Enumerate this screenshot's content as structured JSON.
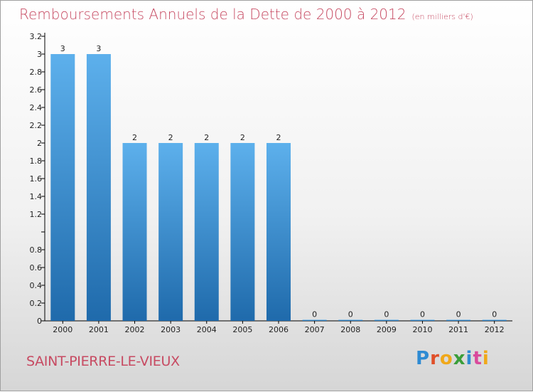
{
  "header": {
    "title": "Remboursements Annuels de la Dette de 2000 à 2012",
    "subtitle": "(en milliers d'€)"
  },
  "commune": "SAINT-PIERRE-LE-VIEUX",
  "logo": {
    "text": "Proxiti",
    "letters": [
      "P",
      "r",
      "o",
      "x",
      "i",
      "t",
      "i"
    ]
  },
  "chart_data": {
    "type": "bar",
    "categories": [
      "2000",
      "2001",
      "2002",
      "2003",
      "2004",
      "2005",
      "2006",
      "2007",
      "2008",
      "2009",
      "2010",
      "2011",
      "2012"
    ],
    "values": [
      3,
      3,
      2,
      2,
      2,
      2,
      2,
      0,
      0,
      0,
      0,
      0,
      0
    ],
    "data_labels": [
      "3",
      "3",
      "2",
      "2",
      "2",
      "2",
      "2",
      "0",
      "0",
      "0",
      "0",
      "0",
      "0"
    ],
    "yticks": [
      0,
      0.2,
      0.4,
      0.6,
      0.8,
      1,
      1.2,
      1.4,
      1.6,
      1.8,
      2,
      2.2,
      2.4,
      2.6,
      2.8,
      3,
      3.2
    ],
    "ytick_labels": [
      "0",
      "0.2",
      "0.4",
      "0.6",
      "0.8",
      "",
      "1.2",
      "1.4",
      "1.6",
      "1.8",
      "2",
      "2.2",
      "2.4",
      "2.6",
      "2.8",
      "3",
      "3.2"
    ],
    "ylim": [
      0,
      3.2
    ],
    "bar_color": "#4a9fe0",
    "bar_color_dark": "#2573b5",
    "title": "Remboursements Annuels de la Dette de 2000 à 2012",
    "xlabel": "",
    "ylabel": ""
  }
}
